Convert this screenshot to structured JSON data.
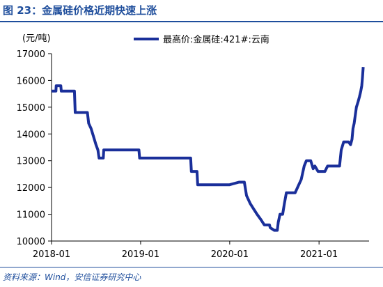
{
  "figure": {
    "title": "图 23：金属硅价格近期快速上涨",
    "source": "资料来源：Wind，安信证券研究中心"
  },
  "chart_data": {
    "type": "line",
    "unit_label": "(元/吨)",
    "ylim": [
      10000,
      17000
    ],
    "yticks": [
      10000,
      11000,
      12000,
      13000,
      14000,
      15000,
      16000,
      17000
    ],
    "xlim": [
      "2018-01-01",
      "2021-07-25"
    ],
    "xticks": [
      "2018-01",
      "2019-01",
      "2020-01",
      "2021-01"
    ],
    "legend": "top",
    "grid": false,
    "color": "#1a2f9a",
    "series": [
      {
        "name": "最高价:金属硅:421#:云南",
        "points": [
          [
            "2018-01-01",
            15600
          ],
          [
            "2018-01-19",
            15600
          ],
          [
            "2018-01-20",
            15800
          ],
          [
            "2018-02-08",
            15800
          ],
          [
            "2018-02-10",
            15600
          ],
          [
            "2018-04-05",
            15600
          ],
          [
            "2018-04-08",
            14800
          ],
          [
            "2018-05-28",
            14800
          ],
          [
            "2018-06-02",
            14400
          ],
          [
            "2018-06-12",
            14200
          ],
          [
            "2018-06-22",
            13900
          ],
          [
            "2018-07-02",
            13600
          ],
          [
            "2018-07-10",
            13400
          ],
          [
            "2018-07-15",
            13100
          ],
          [
            "2018-08-01",
            13100
          ],
          [
            "2018-08-03",
            13400
          ],
          [
            "2018-12-25",
            13400
          ],
          [
            "2018-12-28",
            13100
          ],
          [
            "2019-07-25",
            13100
          ],
          [
            "2019-07-28",
            12600
          ],
          [
            "2019-08-20",
            12600
          ],
          [
            "2019-08-23",
            12100
          ],
          [
            "2019-12-30",
            12100
          ],
          [
            "2020-02-08",
            12200
          ],
          [
            "2020-03-01",
            12200
          ],
          [
            "2020-03-10",
            11700
          ],
          [
            "2020-03-25",
            11400
          ],
          [
            "2020-04-08",
            11200
          ],
          [
            "2020-04-22",
            11000
          ],
          [
            "2020-05-08",
            10800
          ],
          [
            "2020-05-22",
            10600
          ],
          [
            "2020-06-12",
            10600
          ],
          [
            "2020-06-15",
            10500
          ],
          [
            "2020-07-01",
            10400
          ],
          [
            "2020-07-14",
            10400
          ],
          [
            "2020-07-18",
            10700
          ],
          [
            "2020-07-25",
            11000
          ],
          [
            "2020-08-05",
            11000
          ],
          [
            "2020-08-12",
            11400
          ],
          [
            "2020-08-20",
            11800
          ],
          [
            "2020-09-25",
            11800
          ],
          [
            "2020-10-05",
            12000
          ],
          [
            "2020-10-20",
            12300
          ],
          [
            "2020-11-01",
            12800
          ],
          [
            "2020-11-10",
            13000
          ],
          [
            "2020-11-28",
            13000
          ],
          [
            "2020-12-08",
            12700
          ],
          [
            "2020-12-15",
            12800
          ],
          [
            "2020-12-28",
            12600
          ],
          [
            "2021-01-25",
            12600
          ],
          [
            "2021-02-05",
            12800
          ],
          [
            "2021-03-26",
            12800
          ],
          [
            "2021-04-02",
            13400
          ],
          [
            "2021-04-12",
            13700
          ],
          [
            "2021-05-02",
            13700
          ],
          [
            "2021-05-10",
            13600
          ],
          [
            "2021-05-16",
            13800
          ],
          [
            "2021-05-20",
            14200
          ],
          [
            "2021-05-25",
            14400
          ],
          [
            "2021-06-03",
            15000
          ],
          [
            "2021-06-10",
            15200
          ],
          [
            "2021-06-16",
            15400
          ],
          [
            "2021-06-21",
            15600
          ],
          [
            "2021-06-25",
            15800
          ],
          [
            "2021-06-28",
            16100
          ],
          [
            "2021-07-01",
            16500
          ]
        ]
      }
    ]
  }
}
